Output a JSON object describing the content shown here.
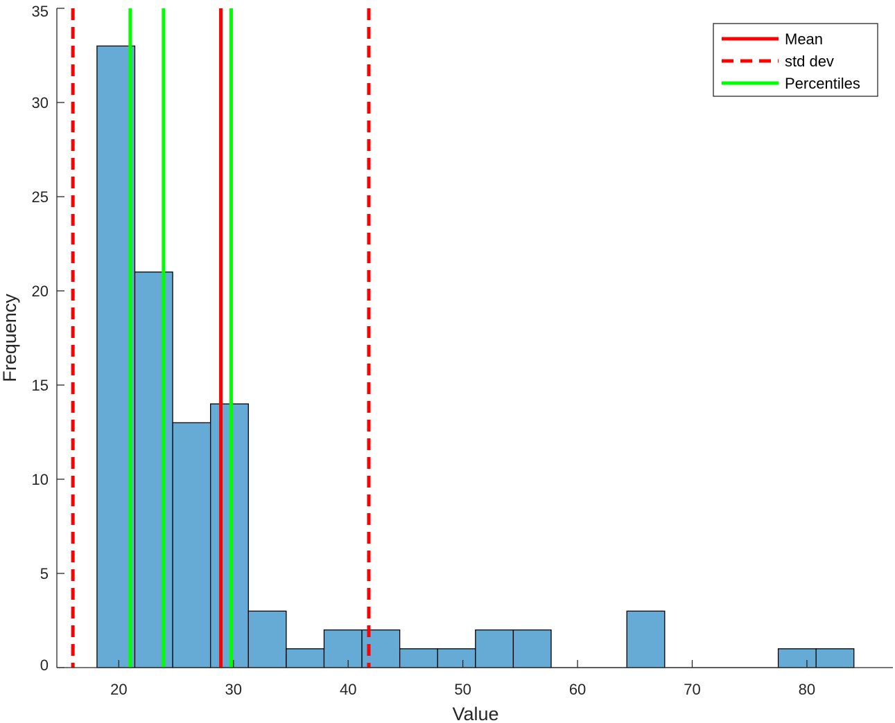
{
  "chart_data": {
    "type": "bar",
    "subtype": "histogram",
    "title": "",
    "xlabel": "Value",
    "ylabel": "Frequency",
    "xlim": [
      14.6,
      87.5
    ],
    "ylim": [
      0,
      35
    ],
    "x_ticks": [
      20,
      30,
      40,
      50,
      60,
      70,
      80
    ],
    "y_ticks": [
      0,
      5,
      10,
      15,
      20,
      25,
      30,
      35
    ],
    "bin_edges": [
      18.1,
      21.4,
      24.7,
      28.0,
      31.3,
      34.6,
      37.9,
      41.2,
      44.5,
      47.8,
      51.1,
      54.4,
      57.7,
      61.0,
      64.3,
      67.6,
      70.9,
      74.2,
      77.5,
      80.8,
      84.1
    ],
    "counts": [
      33,
      21,
      13,
      14,
      3,
      1,
      2,
      2,
      1,
      1,
      2,
      2,
      0,
      0,
      3,
      0,
      0,
      0,
      1,
      1
    ],
    "bar_color": "#66aad6",
    "bar_edge_color": "#000000",
    "lines": [
      {
        "name": "Mean",
        "x": [
          28.9
        ],
        "color": "#ff0000",
        "style": "solid"
      },
      {
        "name": "std dev",
        "x": [
          16.0,
          41.8
        ],
        "color": "#ff0000",
        "style": "dashed"
      },
      {
        "name": "Percentiles",
        "x": [
          21.0,
          23.9,
          29.8
        ],
        "color": "#00ff00",
        "style": "solid"
      }
    ],
    "legend": {
      "position": "top-right",
      "entries": [
        "Mean",
        "std dev",
        "Percentiles"
      ]
    },
    "grid": false
  }
}
